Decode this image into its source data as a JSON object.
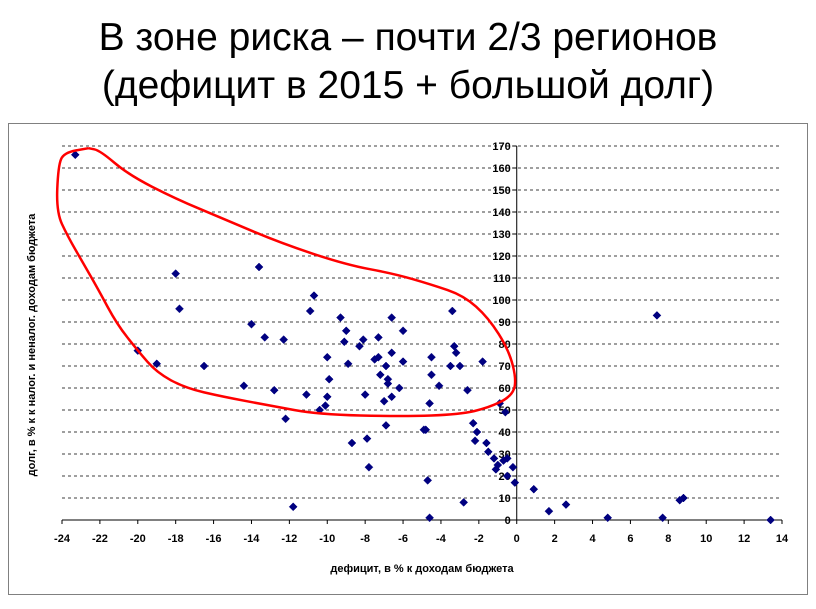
{
  "slide": {
    "title_line1": "В зоне риска – почти 2/3 регионов",
    "title_line2": "(дефицит в 2015 + большой долг)"
  },
  "colors": {
    "marker": "#000080",
    "highlight_curve": "#ff0000",
    "grid": "#000000",
    "frame": "#808080"
  },
  "chart_data": {
    "type": "scatter",
    "title": "",
    "xlabel": "дефицит, в % к доходам бюджета",
    "ylabel": "долг, в %  к к налог. и неналог. доходам бюджета",
    "xlim": [
      -24,
      14
    ],
    "ylim": [
      0,
      170
    ],
    "xticks": [
      -24,
      -22,
      -20,
      -18,
      -16,
      -14,
      -12,
      -10,
      -8,
      -6,
      -4,
      -2,
      0,
      2,
      4,
      6,
      8,
      10,
      12,
      14
    ],
    "yticks": [
      0,
      10,
      20,
      30,
      40,
      50,
      60,
      70,
      80,
      90,
      100,
      110,
      120,
      130,
      140,
      150,
      160,
      170
    ],
    "grid": "horizontal dashed",
    "marker": "diamond",
    "points": [
      [
        -23.3,
        166
      ],
      [
        -18.0,
        112
      ],
      [
        -17.8,
        96
      ],
      [
        -20.0,
        77
      ],
      [
        -19.0,
        71
      ],
      [
        -16.5,
        70
      ],
      [
        -14.4,
        61
      ],
      [
        -14.0,
        89
      ],
      [
        -13.6,
        115
      ],
      [
        -13.3,
        83
      ],
      [
        -12.8,
        59
      ],
      [
        -12.3,
        82
      ],
      [
        -12.2,
        46
      ],
      [
        -11.8,
        6
      ],
      [
        -11.1,
        57
      ],
      [
        -10.9,
        95
      ],
      [
        -10.7,
        102
      ],
      [
        -10.4,
        50
      ],
      [
        -10.1,
        52
      ],
      [
        -10.0,
        74
      ],
      [
        -10.0,
        56
      ],
      [
        -9.9,
        64
      ],
      [
        -9.3,
        92
      ],
      [
        -9.1,
        81
      ],
      [
        -9.0,
        86
      ],
      [
        -8.9,
        71
      ],
      [
        -8.7,
        35
      ],
      [
        -8.3,
        79
      ],
      [
        -8.1,
        82
      ],
      [
        -8.0,
        57
      ],
      [
        -7.9,
        37
      ],
      [
        -7.8,
        24
      ],
      [
        -7.5,
        73
      ],
      [
        -7.3,
        74
      ],
      [
        -7.3,
        83
      ],
      [
        -7.2,
        66
      ],
      [
        -7.0,
        54
      ],
      [
        -6.9,
        43
      ],
      [
        -6.9,
        70
      ],
      [
        -6.8,
        64
      ],
      [
        -6.8,
        62
      ],
      [
        -6.6,
        92
      ],
      [
        -6.6,
        76
      ],
      [
        -6.6,
        56
      ],
      [
        -6.2,
        60
      ],
      [
        -6.0,
        86
      ],
      [
        -6.0,
        72
      ],
      [
        -4.9,
        41
      ],
      [
        -4.8,
        41
      ],
      [
        -4.7,
        18
      ],
      [
        -4.6,
        1
      ],
      [
        -4.6,
        53
      ],
      [
        -4.5,
        66
      ],
      [
        -4.5,
        74
      ],
      [
        -4.1,
        61
      ],
      [
        -3.5,
        70
      ],
      [
        -3.4,
        95
      ],
      [
        -3.3,
        79
      ],
      [
        -3.2,
        76
      ],
      [
        -3.0,
        70
      ],
      [
        -2.8,
        8
      ],
      [
        -2.6,
        59
      ],
      [
        -2.3,
        44
      ],
      [
        -2.2,
        36
      ],
      [
        -2.1,
        40
      ],
      [
        -1.8,
        72
      ],
      [
        -1.6,
        35
      ],
      [
        -1.5,
        31
      ],
      [
        -1.2,
        28
      ],
      [
        -1.1,
        23
      ],
      [
        -1.0,
        25
      ],
      [
        -0.9,
        53
      ],
      [
        -0.7,
        27
      ],
      [
        -0.6,
        49
      ],
      [
        -0.5,
        28
      ],
      [
        -0.2,
        24
      ],
      [
        -0.1,
        17
      ],
      [
        -0.5,
        20
      ],
      [
        0.9,
        14
      ],
      [
        1.7,
        4
      ],
      [
        2.6,
        7
      ],
      [
        4.8,
        1
      ],
      [
        7.4,
        93
      ],
      [
        7.7,
        1
      ],
      [
        8.6,
        9
      ],
      [
        8.8,
        10
      ],
      [
        13.4,
        0
      ]
    ],
    "highlight_region": {
      "color": "#ff0000",
      "outline": [
        [
          -22.6,
          169
        ],
        [
          -23.9,
          167
        ],
        [
          -24.2,
          161
        ],
        [
          -24.3,
          140
        ],
        [
          -23.7,
          129
        ],
        [
          -22.9,
          117
        ],
        [
          -22.1,
          105
        ],
        [
          -21.1,
          89
        ],
        [
          -20.0,
          77
        ],
        [
          -19.0,
          67
        ],
        [
          -17.5,
          60
        ],
        [
          -15.5,
          56
        ],
        [
          -13.0,
          52
        ],
        [
          -10.5,
          48
        ],
        [
          -6.0,
          47
        ],
        [
          -3.0,
          48
        ],
        [
          -1.5,
          51
        ],
        [
          -0.3,
          56
        ],
        [
          0.0,
          63
        ],
        [
          -0.4,
          77
        ],
        [
          -1.5,
          92
        ],
        [
          -2.8,
          102
        ],
        [
          -4.5,
          107
        ],
        [
          -6.5,
          112
        ],
        [
          -9.0,
          116
        ],
        [
          -12.5,
          126
        ],
        [
          -15.5,
          137
        ],
        [
          -18.0,
          146
        ],
        [
          -20.5,
          157
        ],
        [
          -22.0,
          168
        ],
        [
          -22.6,
          169
        ]
      ]
    }
  }
}
